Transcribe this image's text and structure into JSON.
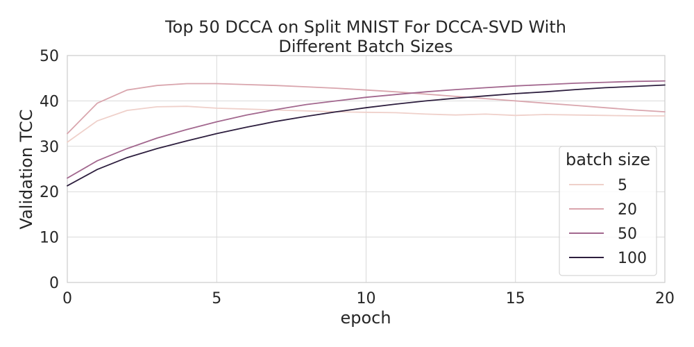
{
  "chart_data": {
    "type": "line",
    "title_lines": [
      "Top 50 DCCA on Split MNIST For DCCA-SVD With",
      "Different Batch Sizes"
    ],
    "xlabel": "epoch",
    "ylabel": "Validation TCC",
    "xlim": [
      0,
      20
    ],
    "ylim": [
      0,
      50
    ],
    "xticks": [
      0,
      5,
      10,
      15,
      20
    ],
    "yticks": [
      0,
      10,
      20,
      30,
      40,
      50
    ],
    "grid": true,
    "legend": {
      "title": "batch size",
      "placement": "bottom-right"
    },
    "x": [
      0,
      1,
      2,
      3,
      4,
      5,
      6,
      7,
      8,
      9,
      10,
      11,
      12,
      13,
      14,
      15,
      16,
      17,
      18,
      19,
      20
    ],
    "series": [
      {
        "name": "5",
        "color": "#efd0ca",
        "values": [
          30.9,
          35.6,
          37.9,
          38.7,
          38.8,
          38.4,
          38.2,
          38.0,
          37.8,
          37.6,
          37.5,
          37.4,
          37.1,
          36.9,
          37.1,
          36.8,
          37.0,
          36.9,
          36.8,
          36.7,
          36.7
        ]
      },
      {
        "name": "20",
        "color": "#d9a5ad",
        "values": [
          32.8,
          39.5,
          42.4,
          43.4,
          43.8,
          43.8,
          43.6,
          43.4,
          43.1,
          42.8,
          42.4,
          42.0,
          41.5,
          41.0,
          40.5,
          40.0,
          39.5,
          39.0,
          38.5,
          38.0,
          37.6
        ]
      },
      {
        "name": "50",
        "color": "#a2678e",
        "values": [
          23.0,
          26.8,
          29.5,
          31.8,
          33.7,
          35.4,
          36.9,
          38.1,
          39.2,
          40.0,
          40.8,
          41.4,
          42.0,
          42.5,
          42.9,
          43.3,
          43.6,
          43.9,
          44.1,
          44.3,
          44.4
        ]
      },
      {
        "name": "100",
        "color": "#2d1e3e",
        "values": [
          21.3,
          24.9,
          27.5,
          29.5,
          31.2,
          32.8,
          34.2,
          35.5,
          36.6,
          37.6,
          38.5,
          39.3,
          40.0,
          40.6,
          41.1,
          41.6,
          42.0,
          42.5,
          42.9,
          43.2,
          43.5
        ]
      }
    ]
  }
}
